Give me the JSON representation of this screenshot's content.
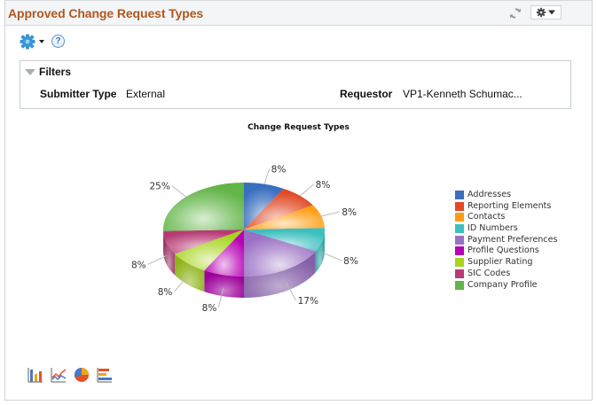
{
  "header": {
    "title": "Approved Change Request Types",
    "refresh_icon": "refresh-icon",
    "menu_icon": "gear-dropdown-icon"
  },
  "toolbar": {
    "settings_icon": "gear-icon",
    "help_icon": "help-icon",
    "help_glyph": "?"
  },
  "filters": {
    "label": "Filters",
    "items": [
      {
        "label": "Submitter Type",
        "value": "External"
      },
      {
        "label": "Requestor",
        "value": "VP1-Kenneth Schumac..."
      }
    ]
  },
  "colors": {
    "title": "#b0571f",
    "panel_border": "#cfd4d8"
  },
  "chart_data": {
    "type": "pie",
    "style": "3d",
    "title": "Change Request Types",
    "categories": [
      "Addresses",
      "Reporting Elements",
      "Contacts",
      "ID Numbers",
      "Payment Preferences",
      "Profile Questions",
      "Supplier Rating",
      "SIC Codes",
      "Company Profile"
    ],
    "values": [
      8,
      8,
      8,
      8,
      17,
      8,
      8,
      8,
      25
    ],
    "labels": [
      "8%",
      "8%",
      "8%",
      "8%",
      "17%",
      "8%",
      "8%",
      "8%",
      "25%"
    ],
    "colors": [
      "#3a6fbf",
      "#e04a25",
      "#ff9d12",
      "#3cbfbf",
      "#9b70c4",
      "#b800b5",
      "#a8d41f",
      "#b83a74",
      "#62b548"
    ],
    "legend_position": "right"
  },
  "chart_type_buttons": [
    {
      "name": "bar-chart-icon"
    },
    {
      "name": "line-chart-icon"
    },
    {
      "name": "pie-chart-icon"
    },
    {
      "name": "horizontal-bar-chart-icon"
    }
  ]
}
